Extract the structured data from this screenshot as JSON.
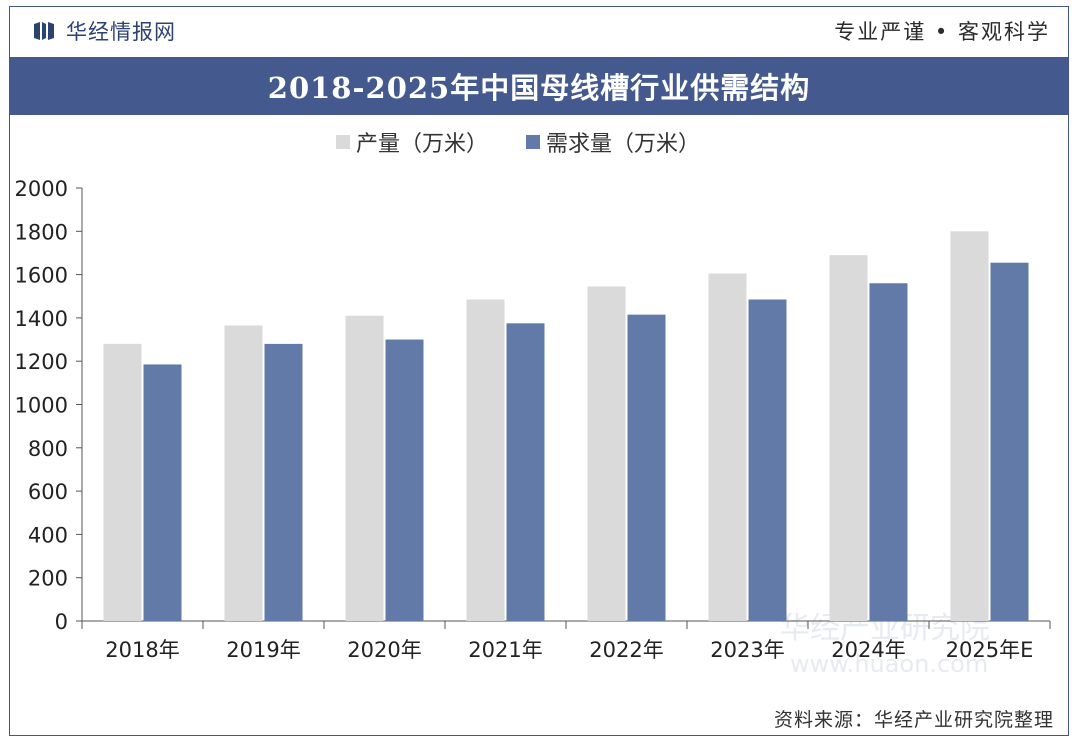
{
  "header": {
    "brand": "华经情报网",
    "slogan": "专业严谨 • 客观科学"
  },
  "banner": {
    "title": "2018-2025年中国母线槽行业供需结构"
  },
  "footer": {
    "source": "资料来源：华经产业研究院整理"
  },
  "watermark": {
    "text": "华经产业研究院",
    "url": "www.huaon.com"
  },
  "colors": {
    "production": "#dadadb",
    "demand": "#627aa7",
    "banner": "#44598e"
  },
  "chart_data": {
    "type": "bar",
    "categories": [
      "2018年",
      "2019年",
      "2020年",
      "2021年",
      "2022年",
      "2023年",
      "2024年",
      "2025年E"
    ],
    "series": [
      {
        "name": "产量（万米）",
        "values": [
          1280,
          1365,
          1410,
          1485,
          1545,
          1605,
          1690,
          1800
        ]
      },
      {
        "name": "需求量（万米）",
        "values": [
          1185,
          1280,
          1300,
          1375,
          1415,
          1485,
          1560,
          1655
        ]
      }
    ],
    "ylim": [
      0,
      2000
    ],
    "yticks": [
      0,
      200,
      400,
      600,
      800,
      1000,
      1200,
      1400,
      1600,
      1800,
      2000
    ],
    "legend": "top-center",
    "grid": false
  }
}
